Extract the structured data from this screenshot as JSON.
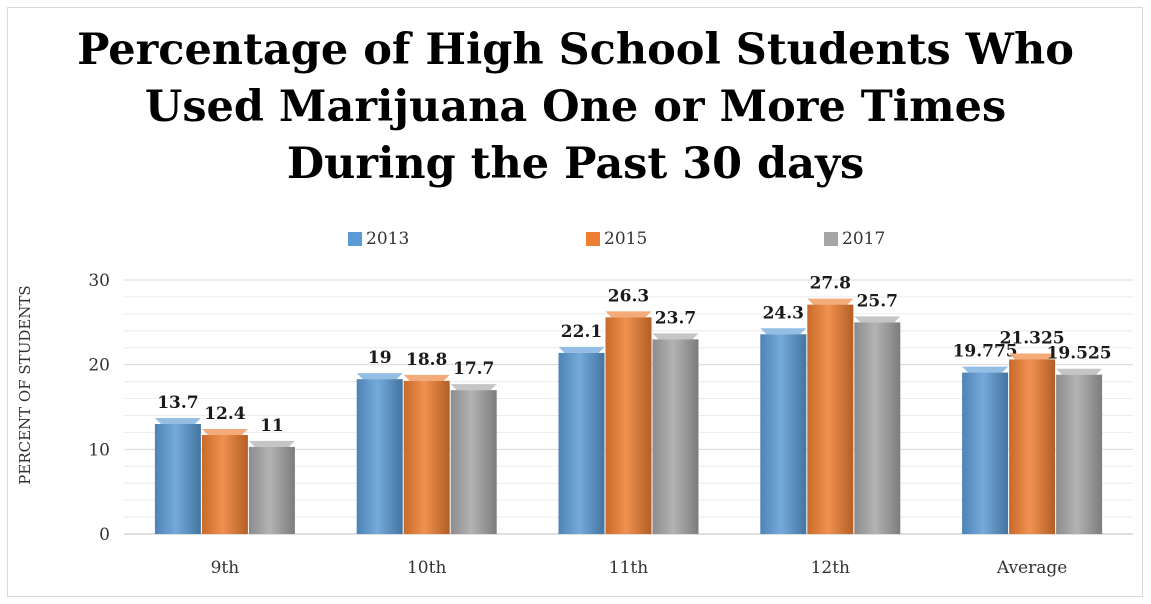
{
  "chart_data": {
    "type": "bar",
    "title_lines": [
      "Percentage of High School Students Who",
      "Used Marijuana One or More Times",
      "During the Past 30 days"
    ],
    "xlabel": "",
    "ylabel": "PERCENT OF STUDENTS",
    "ylim": [
      0,
      30
    ],
    "yticks": [
      "0",
      "10",
      "20",
      "30"
    ],
    "grid": true,
    "legend_position": "top",
    "categories": [
      "9th",
      "10th",
      "11th",
      "12th",
      "Average"
    ],
    "series": [
      {
        "name": "2013",
        "color": "#5b9bd5",
        "values": [
          13.7,
          19,
          22.1,
          24.3,
          19.775
        ],
        "labels": [
          "13.7",
          "19",
          "22.1",
          "24.3",
          "19.775"
        ]
      },
      {
        "name": "2015",
        "color": "#ed7d31",
        "values": [
          12.4,
          18.8,
          26.3,
          27.8,
          21.325
        ],
        "labels": [
          "12.4",
          "18.8",
          "26.3",
          "27.8",
          "21.325"
        ]
      },
      {
        "name": "2017",
        "color": "#a5a5a5",
        "values": [
          11,
          17.7,
          23.7,
          25.7,
          19.525
        ],
        "labels": [
          "11",
          "17.7",
          "23.7",
          "25.7",
          "19.525"
        ]
      }
    ]
  }
}
